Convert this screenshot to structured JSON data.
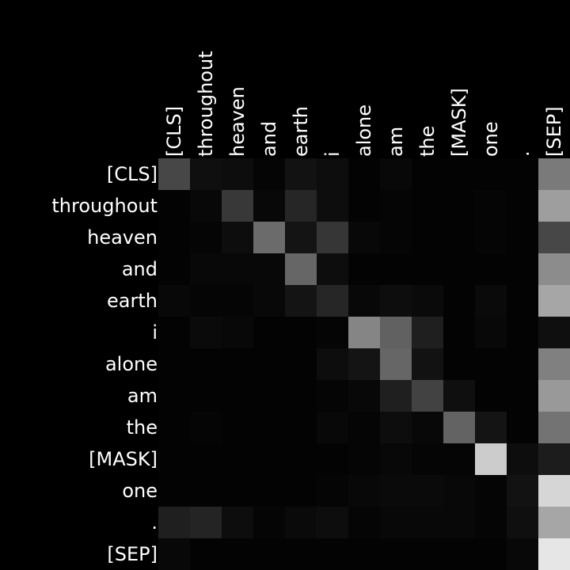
{
  "chart_data": {
    "type": "heatmap",
    "title": "",
    "xlabel": "",
    "ylabel": "",
    "colorscale": "grayscale",
    "value_range": [
      0,
      1
    ],
    "x_tokens": [
      "[CLS]",
      "throughout",
      "heaven",
      "and",
      "earth",
      "i",
      "alone",
      "am",
      "the",
      "[MASK]",
      "one",
      ".",
      "[SEP]"
    ],
    "y_tokens": [
      "[CLS]",
      "throughout",
      "heaven",
      "and",
      "earth",
      "i",
      "alone",
      "am",
      "the",
      "[MASK]",
      "one",
      ".",
      "[SEP]"
    ],
    "values": [
      [
        0.28,
        0.06,
        0.05,
        0.02,
        0.07,
        0.05,
        0.01,
        0.03,
        0.01,
        0.01,
        0.01,
        0.01,
        0.48
      ],
      [
        0.01,
        0.03,
        0.22,
        0.03,
        0.15,
        0.05,
        0.01,
        0.02,
        0.01,
        0.01,
        0.02,
        0.01,
        0.62
      ],
      [
        0.01,
        0.02,
        0.05,
        0.42,
        0.08,
        0.21,
        0.03,
        0.02,
        0.01,
        0.01,
        0.02,
        0.01,
        0.28
      ],
      [
        0.01,
        0.03,
        0.03,
        0.03,
        0.4,
        0.05,
        0.01,
        0.01,
        0.01,
        0.01,
        0.01,
        0.01,
        0.55
      ],
      [
        0.03,
        0.02,
        0.02,
        0.03,
        0.08,
        0.15,
        0.03,
        0.05,
        0.04,
        0.01,
        0.04,
        0.01,
        0.65
      ],
      [
        0.01,
        0.04,
        0.03,
        0.01,
        0.01,
        0.02,
        0.52,
        0.38,
        0.12,
        0.01,
        0.03,
        0.01,
        0.06
      ],
      [
        0.01,
        0.01,
        0.01,
        0.01,
        0.01,
        0.05,
        0.08,
        0.4,
        0.07,
        0.01,
        0.01,
        0.01,
        0.5
      ],
      [
        0.01,
        0.01,
        0.01,
        0.01,
        0.01,
        0.02,
        0.03,
        0.12,
        0.26,
        0.06,
        0.01,
        0.01,
        0.6
      ],
      [
        0.01,
        0.02,
        0.01,
        0.01,
        0.01,
        0.03,
        0.02,
        0.05,
        0.03,
        0.39,
        0.08,
        0.01,
        0.45
      ],
      [
        0.01,
        0.01,
        0.01,
        0.01,
        0.01,
        0.01,
        0.02,
        0.03,
        0.02,
        0.02,
        0.8,
        0.05,
        0.11
      ],
      [
        0.01,
        0.01,
        0.01,
        0.01,
        0.01,
        0.02,
        0.03,
        0.04,
        0.04,
        0.03,
        0.02,
        0.07,
        0.84
      ],
      [
        0.12,
        0.14,
        0.05,
        0.02,
        0.04,
        0.05,
        0.02,
        0.03,
        0.03,
        0.03,
        0.02,
        0.06,
        0.65
      ],
      [
        0.03,
        0.01,
        0.01,
        0.01,
        0.01,
        0.01,
        0.01,
        0.01,
        0.01,
        0.01,
        0.01,
        0.03,
        0.9
      ]
    ]
  }
}
